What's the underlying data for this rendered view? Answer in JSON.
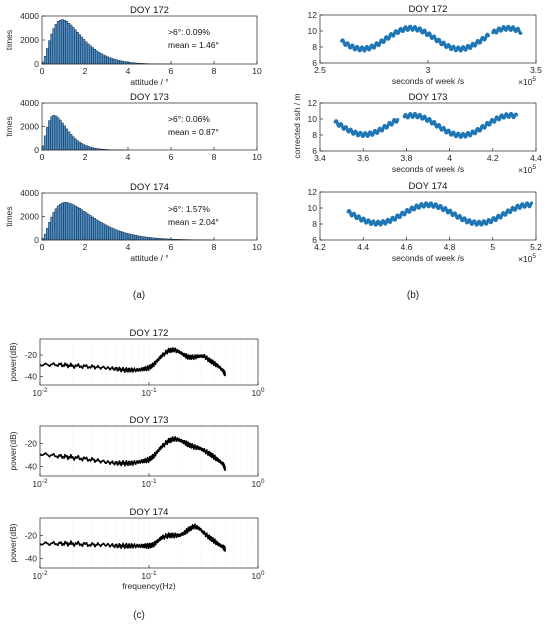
{
  "figure": {
    "panels": [
      {
        "label": "(a)"
      },
      {
        "label": "(b)"
      },
      {
        "label": "(c)"
      }
    ],
    "colors": {
      "bar": "#4f8fc4",
      "bar_edge": "#0a1e3a",
      "scatter": "#1f77b4",
      "line": "#000000",
      "axis": "#262626",
      "grid": "#d9d9d9"
    }
  },
  "chart_data": [
    {
      "type": "bar",
      "panel": "a",
      "title": "DOY 172",
      "xlabel": "attitude / °",
      "ylabel": "times",
      "xlim": [
        0,
        10
      ],
      "ylim": [
        0,
        4000
      ],
      "xticks": [
        "0",
        "2",
        "4",
        "6",
        "8",
        "10"
      ],
      "yticks": [
        "0",
        "2000",
        "4000"
      ],
      "annotations": [
        ">6°:  0.09%",
        "mean = 1.46°"
      ],
      "bin_width": 0.1,
      "x": [
        0.05,
        0.15,
        0.25,
        0.35,
        0.45,
        0.55,
        0.65,
        0.75,
        0.85,
        0.95,
        1.05,
        1.15,
        1.25,
        1.35,
        1.45,
        1.55,
        1.65,
        1.75,
        1.85,
        1.95,
        2.05,
        2.15,
        2.25,
        2.35,
        2.45,
        2.55,
        2.65,
        2.75,
        2.85,
        2.95,
        3.05,
        3.15,
        3.25,
        3.35,
        3.45,
        3.55,
        3.65,
        3.75,
        3.85,
        3.95,
        4.05,
        4.15,
        4.25,
        4.35,
        4.45,
        4.55,
        4.65,
        4.75,
        4.85,
        4.95,
        5.05,
        5.15,
        5.25,
        5.35,
        5.45,
        5.55,
        5.65,
        5.75,
        5.85,
        5.95,
        6.05
      ],
      "values": [
        160,
        650,
        1300,
        1950,
        2500,
        2950,
        3300,
        3550,
        3650,
        3700,
        3650,
        3550,
        3400,
        3250,
        3050,
        2850,
        2650,
        2450,
        2250,
        2050,
        1850,
        1680,
        1520,
        1370,
        1230,
        1100,
        980,
        870,
        770,
        680,
        600,
        530,
        470,
        410,
        360,
        310,
        270,
        235,
        200,
        170,
        145,
        122,
        102,
        86,
        72,
        60,
        50,
        41,
        34,
        28,
        23,
        19,
        15,
        12,
        10,
        8,
        6,
        5,
        4,
        3,
        2
      ]
    },
    {
      "type": "bar",
      "panel": "a",
      "title": "DOY 173",
      "xlabel": "",
      "ylabel": "times",
      "xlim": [
        0,
        10
      ],
      "ylim": [
        0,
        4000
      ],
      "xticks": [
        "0",
        "2",
        "4",
        "6",
        "8",
        "10"
      ],
      "yticks": [
        "0",
        "2000",
        "4000"
      ],
      "annotations": [
        ">6°:  0.06%",
        "mean = 0.87°"
      ],
      "bin_width": 0.1,
      "x": [
        0.05,
        0.15,
        0.25,
        0.35,
        0.45,
        0.55,
        0.65,
        0.75,
        0.85,
        0.95,
        1.05,
        1.15,
        1.25,
        1.35,
        1.45,
        1.55,
        1.65,
        1.75,
        1.85,
        1.95,
        2.05,
        2.15,
        2.25,
        2.35,
        2.45,
        2.55,
        2.65,
        2.75,
        2.85,
        2.95,
        3.05,
        3.15,
        3.25,
        3.35,
        3.45,
        3.55,
        3.65,
        3.75,
        3.85,
        3.95
      ],
      "values": [
        350,
        1200,
        1950,
        2500,
        2850,
        2950,
        2900,
        2750,
        2550,
        2300,
        2050,
        1800,
        1550,
        1330,
        1130,
        950,
        800,
        670,
        560,
        460,
        380,
        310,
        250,
        200,
        160,
        130,
        100,
        80,
        62,
        48,
        37,
        28,
        21,
        16,
        12,
        9,
        6,
        4,
        3,
        2
      ]
    },
    {
      "type": "bar",
      "panel": "a",
      "title": "DOY 174",
      "xlabel": "attitude / °",
      "ylabel": "times",
      "xlim": [
        0,
        10
      ],
      "ylim": [
        0,
        4000
      ],
      "xticks": [
        "0",
        "2",
        "4",
        "6",
        "8",
        "10"
      ],
      "yticks": [
        "0",
        "2000",
        "4000"
      ],
      "annotations": [
        ">6°:  1.57%",
        "mean = 2.04°"
      ],
      "bin_width": 0.1,
      "x": [
        0.05,
        0.15,
        0.25,
        0.35,
        0.45,
        0.55,
        0.65,
        0.75,
        0.85,
        0.95,
        1.05,
        1.15,
        1.25,
        1.35,
        1.45,
        1.55,
        1.65,
        1.75,
        1.85,
        1.95,
        2.05,
        2.15,
        2.25,
        2.35,
        2.45,
        2.55,
        2.65,
        2.75,
        2.85,
        2.95,
        3.05,
        3.15,
        3.25,
        3.35,
        3.45,
        3.55,
        3.65,
        3.75,
        3.85,
        3.95,
        4.05,
        4.15,
        4.25,
        4.35,
        4.45,
        4.55,
        4.65,
        4.75,
        4.85,
        4.95,
        5.05,
        5.15,
        5.25,
        5.35,
        5.45,
        5.55,
        5.65,
        5.75,
        5.85,
        5.95,
        6.05,
        6.15,
        6.25,
        6.35,
        6.45,
        6.55,
        6.65,
        6.75,
        6.85,
        6.95,
        7.05,
        7.15,
        7.25,
        7.35,
        7.45,
        7.55,
        7.65,
        7.75,
        7.85,
        7.95
      ],
      "values": [
        130,
        500,
        1000,
        1500,
        1950,
        2350,
        2650,
        2900,
        3050,
        3150,
        3200,
        3200,
        3150,
        3080,
        3000,
        2900,
        2800,
        2700,
        2580,
        2450,
        2330,
        2200,
        2080,
        1960,
        1840,
        1720,
        1610,
        1500,
        1400,
        1300,
        1200,
        1110,
        1030,
        950,
        870,
        800,
        740,
        680,
        620,
        570,
        520,
        480,
        440,
        400,
        365,
        330,
        300,
        275,
        250,
        225,
        205,
        185,
        170,
        155,
        140,
        125,
        112,
        100,
        90,
        81,
        73,
        65,
        58,
        52,
        47,
        42,
        37,
        33,
        30,
        26,
        23,
        21,
        18,
        16,
        14,
        12,
        10,
        9,
        8,
        7
      ]
    },
    {
      "type": "scatter",
      "panel": "b",
      "title": "DOY 172",
      "xlabel": "seconds of week /s",
      "ylabel": "",
      "x_exponent": "×10^5",
      "xlim": [
        2.5,
        3.5
      ],
      "ylim": [
        6,
        12
      ],
      "xticks": [
        "2.5",
        "3",
        "3.5"
      ],
      "yticks": [
        "6",
        "8",
        "10",
        "12"
      ],
      "segments": [
        {
          "x_start": 2.6,
          "x_end": 3.28,
          "period": 0.45,
          "phase_x": 2.92,
          "mean": 9.05,
          "amplitude": 1.3
        },
        {
          "x_start": 3.3,
          "x_end": 3.43,
          "period": 0.45,
          "phase_x": 2.92,
          "mean": 9.05,
          "amplitude": 1.3
        }
      ]
    },
    {
      "type": "scatter",
      "panel": "b",
      "title": "DOY 173",
      "xlabel": "seconds of week /s",
      "ylabel": "corrected ssh / m",
      "x_exponent": "×10^5",
      "xlim": [
        3.4,
        4.4
      ],
      "ylim": [
        6,
        12
      ],
      "xticks": [
        "3.4",
        "3.6",
        "3.8",
        "4",
        "4.2",
        "4.4"
      ],
      "yticks": [
        "6",
        "8",
        "10",
        "12"
      ],
      "segments": [
        {
          "x_start": 3.47,
          "x_end": 3.76,
          "period": 0.45,
          "phase_x": 3.38,
          "mean": 9.25,
          "amplitude": 1.2
        },
        {
          "x_start": 3.79,
          "x_end": 4.31,
          "period": 0.45,
          "phase_x": 3.83,
          "mean": 9.2,
          "amplitude": 1.25
        }
      ]
    },
    {
      "type": "scatter",
      "panel": "b",
      "title": "DOY 174",
      "xlabel": "seconds of week /s",
      "ylabel": "",
      "x_exponent": "×10^5",
      "xlim": [
        4.2,
        5.2
      ],
      "ylim": [
        6,
        12
      ],
      "xticks": [
        "4.2",
        "4.4",
        "4.6",
        "4.8",
        "5",
        "5.2"
      ],
      "yticks": [
        "6",
        "8",
        "10",
        "12"
      ],
      "segments": [
        {
          "x_start": 4.33,
          "x_end": 5.18,
          "period": 0.47,
          "phase_x": 4.7,
          "mean": 9.25,
          "amplitude": 1.15
        }
      ]
    },
    {
      "type": "line",
      "panel": "c",
      "title": "DOY 172",
      "xlabel": "",
      "ylabel": "power(dB)",
      "x_scale": "log",
      "xlim": [
        0.01,
        1
      ],
      "ylim": [
        -48,
        -5
      ],
      "xticks": [
        "10^-2",
        "10^-1",
        "10^0"
      ],
      "yticks": [
        "-20",
        "-40"
      ],
      "x": [
        0.01,
        0.015,
        0.02,
        0.03,
        0.04,
        0.05,
        0.06,
        0.07,
        0.08,
        0.09,
        0.1,
        0.11,
        0.12,
        0.13,
        0.15,
        0.17,
        0.19,
        0.21,
        0.23,
        0.26,
        0.29,
        0.32,
        0.36,
        0.4,
        0.44,
        0.48,
        0.5
      ],
      "values": [
        -29,
        -29,
        -30,
        -31,
        -32,
        -33,
        -34,
        -34,
        -34,
        -33,
        -32,
        -29,
        -25,
        -21,
        -16,
        -15,
        -17,
        -20,
        -22,
        -22,
        -21,
        -21,
        -25,
        -28,
        -31,
        -35,
        -38
      ]
    },
    {
      "type": "line",
      "panel": "c",
      "title": "DOY 173",
      "xlabel": "",
      "ylabel": "power(dB)",
      "x_scale": "log",
      "xlim": [
        0.01,
        1
      ],
      "ylim": [
        -48,
        -5
      ],
      "xticks": [
        "10^-2",
        "10^-1",
        "10^0"
      ],
      "yticks": [
        "-20",
        "-40"
      ],
      "x": [
        0.01,
        0.015,
        0.02,
        0.03,
        0.04,
        0.05,
        0.06,
        0.07,
        0.08,
        0.09,
        0.1,
        0.11,
        0.12,
        0.13,
        0.15,
        0.17,
        0.19,
        0.21,
        0.23,
        0.26,
        0.29,
        0.32,
        0.36,
        0.4,
        0.44,
        0.48,
        0.5
      ],
      "values": [
        -29,
        -31,
        -32,
        -34,
        -36,
        -37,
        -37,
        -37,
        -36,
        -35,
        -34,
        -31,
        -27,
        -23,
        -18,
        -16,
        -17,
        -19,
        -21,
        -23,
        -24,
        -26,
        -29,
        -32,
        -35,
        -38,
        -42
      ]
    },
    {
      "type": "line",
      "panel": "c",
      "title": "DOY 174",
      "xlabel": "frequency(Hz)",
      "ylabel": "power(dB)",
      "x_scale": "log",
      "xlim": [
        0.01,
        1
      ],
      "ylim": [
        -48,
        -5
      ],
      "xticks": [
        "10^-2",
        "10^-1",
        "10^0"
      ],
      "yticks": [
        "-20",
        "-40"
      ],
      "x": [
        0.01,
        0.015,
        0.02,
        0.03,
        0.04,
        0.05,
        0.06,
        0.07,
        0.08,
        0.09,
        0.1,
        0.11,
        0.12,
        0.13,
        0.15,
        0.17,
        0.19,
        0.21,
        0.23,
        0.26,
        0.29,
        0.32,
        0.36,
        0.4,
        0.44,
        0.48,
        0.5
      ],
      "values": [
        -27,
        -27,
        -27,
        -28,
        -28,
        -29,
        -29,
        -29,
        -29,
        -29,
        -29,
        -28,
        -25,
        -22,
        -20,
        -20,
        -20,
        -18,
        -15,
        -12,
        -14,
        -18,
        -22,
        -25,
        -28,
        -30,
        -32
      ]
    }
  ]
}
